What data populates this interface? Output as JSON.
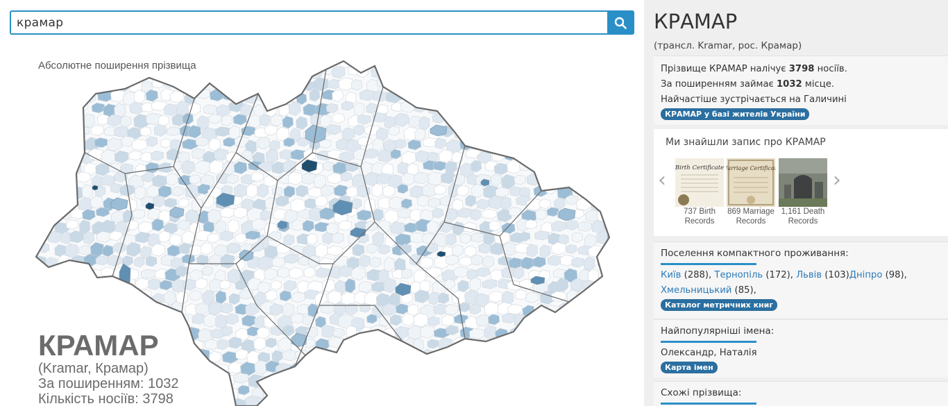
{
  "search": {
    "value": "крамар"
  },
  "map": {
    "title": "Абсолютне поширення прізвища",
    "colors": {
      "outline": "#6a6a6a",
      "light": "#dfe8f0",
      "mid": "#9cbdd6",
      "strong": "#5f8fb3",
      "dark": "#1e4d6e"
    }
  },
  "summary": {
    "name": "КРАМАР",
    "translit": "(Kramar, Крамар)",
    "rank_line": "За поширенням: 1032",
    "count_line": "Кількість носіїв:  3798"
  },
  "panel": {
    "title": "КРАМАР",
    "subtitle": "(трансл. Kramar, рос. Крамар)",
    "info": {
      "l1_prefix": "Прізвище КРАМАР налічує ",
      "count": "3798",
      "l1_suffix": " носіїв.",
      "l2_prefix": "За поширенням займає ",
      "rank": "1032",
      "l2_suffix": " місце.",
      "l3": "Найчастіше зустрічається на Галичині",
      "badge": "КРАМАР у базі жителів України"
    },
    "records": {
      "title": "Ми знайшли запис про КРАМАР",
      "items": [
        {
          "count": "737 Birth",
          "type": "Records",
          "thumb_label": "Birth Certificate"
        },
        {
          "count": "869 Marriage",
          "type": "Records",
          "thumb_label": "Marriage Certificate"
        },
        {
          "count": "1,161 Death",
          "type": "Records",
          "thumb_label": ""
        }
      ]
    },
    "settlements": {
      "title": "Поселення компактного проживання:",
      "cities": [
        {
          "name": "Київ",
          "count": " (288), "
        },
        {
          "name": "Тернопіль",
          "count": " (172), "
        },
        {
          "name": "Львів",
          "count": " (103)"
        },
        {
          "name": "Дніпро",
          "count": " (98), "
        },
        {
          "name": "Хмельницький",
          "count": " (85),"
        }
      ],
      "badge": "Каталог метричних книг"
    },
    "names": {
      "title": "Найпопулярніші імена:",
      "value": "Олександр, Наталія",
      "badge": "Карта імен"
    },
    "similar": {
      "title": "Схожі прізвища:"
    }
  }
}
